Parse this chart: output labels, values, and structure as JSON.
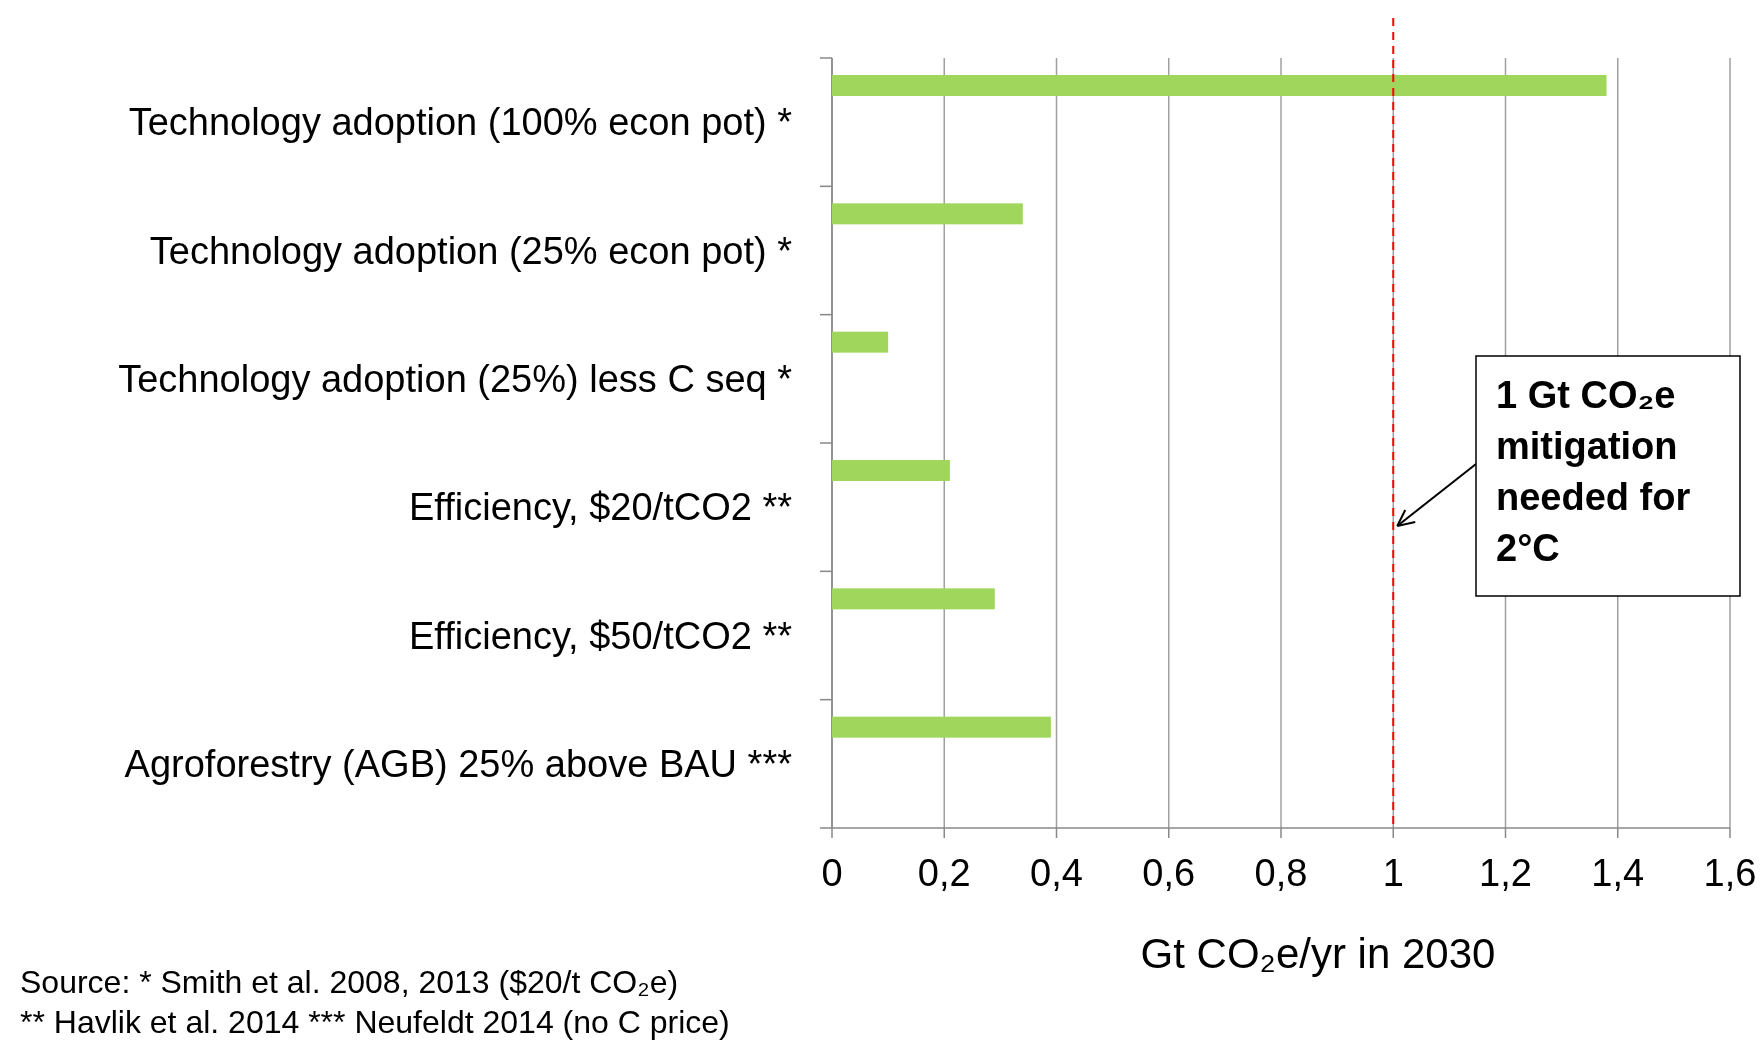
{
  "chart_data": {
    "type": "bar",
    "orientation": "horizontal",
    "categories": [
      "Technology adoption (100% econ pot)  *",
      "Technology adoption (25% econ pot) *",
      "Technology adoption (25%) less C seq *",
      "Efficiency, $20/tCO2 **",
      "Efficiency, $50/tCO2 **",
      "Agroforestry (AGB) 25% above BAU ***"
    ],
    "values": [
      1.38,
      0.34,
      0.1,
      0.21,
      0.29,
      0.39
    ],
    "color": "#9fd65b",
    "xlim": [
      0,
      1.6
    ],
    "xticks": [
      0,
      {
        "value": 0.2,
        "label": "0,2"
      },
      {
        "value": 0.4,
        "label": "0,4"
      },
      {
        "value": 0.6,
        "label": "0,6"
      },
      {
        "value": 0.8,
        "label": "0,8"
      },
      1,
      {
        "value": 1.2,
        "label": "1,2"
      },
      {
        "value": 1.4,
        "label": "1,4"
      },
      {
        "value": 1.6,
        "label": "1,6"
      }
    ],
    "grid": "x",
    "xlabel": "Gt CO₂e/yr in 2030",
    "ref_lines": [
      {
        "axis": "x",
        "value": 1,
        "color": "#ff0000",
        "line_style": "dashed"
      }
    ],
    "annotations": [
      {
        "text": "1 Gt CO₂e mitigation needed for 2°C",
        "x": 1
      },
      "Source: * Smith et al. 2008, 2013 ($20/t CO₂e)",
      "** Havlik et al. 2014 *** Neufeldt 2014  (no C price)"
    ]
  }
}
